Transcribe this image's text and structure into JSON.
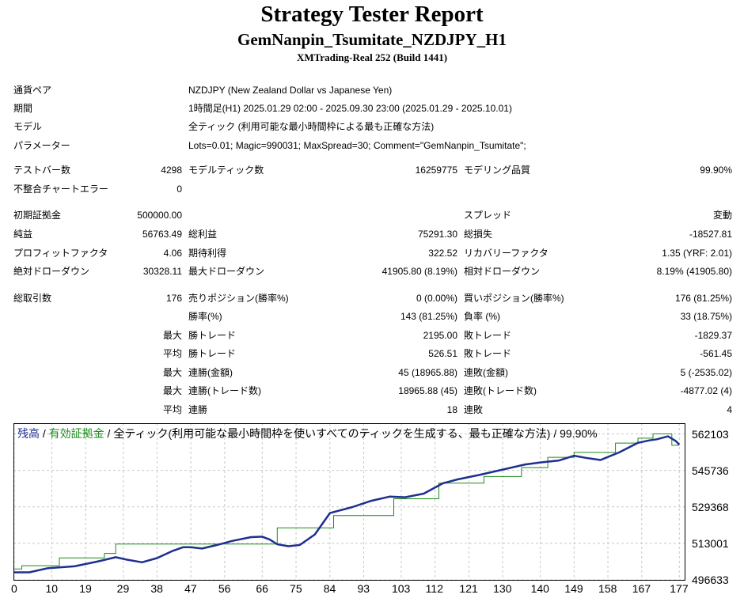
{
  "header": {
    "title": "Strategy Tester Report",
    "subtitle": "GemNanpin_Tsumitate_NZDJPY_H1",
    "server": "XMTrading-Real 252 (Build 1441)"
  },
  "info": {
    "symbol_label": "通貨ペア",
    "symbol": "NZDJPY (New Zealand Dollar vs Japanese Yen)",
    "period_label": "期間",
    "period": "1時間足(H1) 2025.01.29 02:00 - 2025.09.30 23:00 (2025.01.29 - 2025.10.01)",
    "model_label": "モデル",
    "model": "全ティック (利用可能な最小時間枠による最も正確な方法)",
    "params_label": "パラメーター",
    "params": "Lots=0.01; Magic=990031; MaxSpread=30; Comment=\"GemNanpin_Tsumitate\";"
  },
  "stats": {
    "bars_label": "テストバー数",
    "bars": "4298",
    "ticks_label": "モデルティック数",
    "ticks": "16259775",
    "quality_label": "モデリング品質",
    "quality": "99.90%",
    "mismatch_label": "不整合チャートエラー",
    "mismatch": "0",
    "deposit_label": "初期証拠金",
    "deposit": "500000.00",
    "spread_label": "スプレッド",
    "spread": "変動",
    "net_label": "純益",
    "net": "56763.49",
    "gross_profit_label": "総利益",
    "gross_profit": "75291.30",
    "gross_loss_label": "総損失",
    "gross_loss": "-18527.81",
    "pf_label": "プロフィットファクタ",
    "pf": "4.06",
    "expected_label": "期待利得",
    "expected": "322.52",
    "recovery_label": "リカバリーファクタ",
    "recovery": "1.35 (YRF: 2.01)",
    "abs_dd_label": "絶対ドローダウン",
    "abs_dd": "30328.11",
    "max_dd_label": "最大ドローダウン",
    "max_dd": "41905.80 (8.19%)",
    "rel_dd_label": "相対ドローダウン",
    "rel_dd": "8.19% (41905.80)",
    "total_trades_label": "総取引数",
    "total_trades": "176",
    "short_label": "売りポジション(勝率%)",
    "short": "0 (0.00%)",
    "long_label": "買いポジション(勝率%)",
    "long": "176 (81.25%)",
    "win_rate_label": "勝率(%)",
    "win_rate": "143 (81.25%)",
    "loss_rate_label": "負率 (%)",
    "loss_rate": "33 (18.75%)",
    "max_label": "最大",
    "avg_label": "平均",
    "win_trade_label": "勝トレード",
    "loss_trade_label": "敗トレード",
    "largest_win": "2195.00",
    "largest_loss": "-1829.37",
    "avg_win": "526.51",
    "avg_loss": "-561.45",
    "consec_wins_money_label": "連勝(金額)",
    "consec_wins_money": "45 (18965.88)",
    "consec_losses_money_label": "連敗(金額)",
    "consec_losses_money": "5 (-2535.02)",
    "consec_wins_count_label": "連勝(トレード数)",
    "consec_wins_count": "18965.88 (45)",
    "consec_losses_count_label": "連敗(トレード数)",
    "consec_losses_count": "-4877.02 (4)",
    "avg_consec_wins_label": "連勝",
    "avg_consec_wins": "18",
    "avg_consec_losses_label": "連敗",
    "avg_consec_losses": "4"
  },
  "legend": {
    "balance": "残高",
    "sep1": " / ",
    "equity": "有効証拠金",
    "rest": " / 全ティック(利用可能な最小時間枠を使いすべてのティックを生成する、最も正確な方法) / 99.90%"
  },
  "colors": {
    "balance": "#1f2f8f",
    "equity": "#1a8a1a",
    "grid": "#c8c8c8",
    "border": "#000000"
  },
  "chart_data": {
    "type": "line",
    "xlim": [
      0,
      178
    ],
    "ylim": [
      496633,
      563000
    ],
    "y_ticks": [
      562103,
      545736,
      529368,
      513001,
      496633
    ],
    "x_ticks": [
      0,
      10,
      19,
      29,
      38,
      47,
      56,
      66,
      75,
      84,
      93,
      103,
      112,
      121,
      130,
      140,
      149,
      158,
      167,
      177
    ],
    "grid": true,
    "series": [
      {
        "name": "残高",
        "x": [
          0,
          4,
          9,
          16,
          22,
          27,
          30,
          34,
          38,
          42,
          45,
          47,
          50,
          54,
          58,
          63,
          66,
          68,
          70,
          73,
          76,
          80,
          84,
          90,
          95,
          100,
          104,
          109,
          114,
          118,
          124,
          130,
          136,
          140,
          145,
          149,
          152,
          156,
          161,
          166,
          169,
          171,
          174,
          176,
          177
        ],
        "y": [
          500000,
          500000,
          501900,
          502700,
          504800,
          506800,
          505700,
          504500,
          506400,
          509500,
          511300,
          511300,
          510700,
          512300,
          514100,
          515800,
          516000,
          514700,
          512600,
          511700,
          512300,
          517000,
          526600,
          529300,
          532100,
          534000,
          533700,
          535300,
          539900,
          541700,
          543800,
          546100,
          548400,
          549300,
          550200,
          552300,
          551400,
          550400,
          553800,
          558100,
          559200,
          559700,
          561000,
          559000,
          557300
        ]
      },
      {
        "name": "有効証拠金",
        "x": [
          0,
          2,
          2,
          12,
          12,
          24,
          24,
          27,
          27,
          70,
          70,
          85,
          85,
          101,
          101,
          113,
          113,
          125,
          125,
          135,
          135,
          142,
          142,
          149,
          149,
          160,
          160,
          166,
          166,
          170,
          170,
          175,
          175,
          177
        ],
        "y": [
          501500,
          501500,
          503000,
          503000,
          506500,
          506500,
          508500,
          508500,
          512700,
          512700,
          520000,
          520000,
          525500,
          525500,
          533000,
          533000,
          540000,
          540000,
          543000,
          543000,
          547000,
          547000,
          551600,
          551600,
          553800,
          553800,
          558000,
          558000,
          560200,
          560200,
          562100,
          562100,
          557000,
          557000
        ]
      }
    ]
  }
}
